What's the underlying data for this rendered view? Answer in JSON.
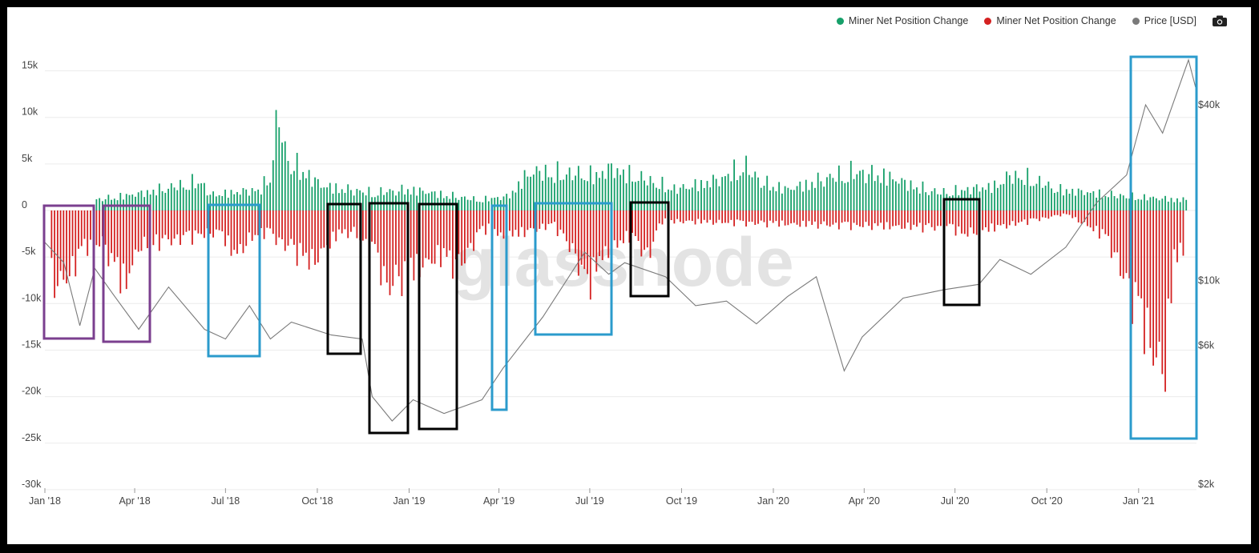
{
  "legend": {
    "green_label": "Miner Net Position Change",
    "red_label": "Miner Net Position Change",
    "price_label": "Price [USD]",
    "green_color": "#16a06a",
    "red_color": "#d42121",
    "price_color": "#7a7a7a"
  },
  "watermark": "glassnode",
  "chart_data": {
    "type": "bar",
    "x_range": [
      "2018-01-01",
      "2021-02-28"
    ],
    "x_ticks": [
      "Jan '18",
      "Apr '18",
      "Jul '18",
      "Oct '18",
      "Jan '19",
      "Apr '19",
      "Jul '19",
      "Oct '19",
      "Jan '20",
      "Apr '20",
      "Jul '20",
      "Oct '20",
      "Jan '21"
    ],
    "y_left_ticks": [
      "15k",
      "10k",
      "5k",
      "0",
      "-5k",
      "-10k",
      "-15k",
      "-20k",
      "-25k",
      "-30k"
    ],
    "y_left_range": [
      -30000,
      15000
    ],
    "y_right_ticks": [
      "$40k",
      "$10k",
      "$6k",
      "$2k"
    ],
    "y_right_scale": "log",
    "series": [
      {
        "name": "Miner Net Position Change",
        "color": "#16a06a",
        "unit": "BTC",
        "points": [
          [
            "2018-02-20",
            1500
          ],
          [
            "2018-04-10",
            2500
          ],
          [
            "2018-04-25",
            3000
          ],
          [
            "2018-05-15",
            3500
          ],
          [
            "2018-06-05",
            4200
          ],
          [
            "2018-06-15",
            2200
          ],
          [
            "2018-08-05",
            3000
          ],
          [
            "2018-08-15",
            5500
          ],
          [
            "2018-08-22",
            14000
          ],
          [
            "2018-08-30",
            7500
          ],
          [
            "2018-10-05",
            3500
          ],
          [
            "2018-11-25",
            2500
          ],
          [
            "2019-01-01",
            3000
          ],
          [
            "2019-03-10",
            1500
          ],
          [
            "2019-04-10",
            2000
          ],
          [
            "2019-05-01",
            5500
          ],
          [
            "2019-07-10",
            5000
          ],
          [
            "2019-07-20",
            6000
          ],
          [
            "2019-09-25",
            3000
          ],
          [
            "2019-11-10",
            4500
          ],
          [
            "2019-12-01",
            6500
          ],
          [
            "2019-12-20",
            4000
          ],
          [
            "2020-01-15",
            3000
          ],
          [
            "2020-02-20",
            4500
          ],
          [
            "2020-03-20",
            5500
          ],
          [
            "2020-04-20",
            5000
          ],
          [
            "2020-05-20",
            3500
          ],
          [
            "2020-06-15",
            2500
          ],
          [
            "2020-08-10",
            3500
          ],
          [
            "2020-08-25",
            5000
          ],
          [
            "2020-09-15",
            4500
          ],
          [
            "2020-10-10",
            3000
          ],
          [
            "2020-12-20",
            2000
          ],
          [
            "2021-02-18",
            1500
          ]
        ]
      },
      {
        "name": "Miner Net Position Change",
        "color": "#d42121",
        "unit": "BTC",
        "points": [
          [
            "2018-01-05",
            -8000
          ],
          [
            "2018-01-12",
            -11000
          ],
          [
            "2018-01-25",
            -9000
          ],
          [
            "2018-02-10",
            -5000
          ],
          [
            "2018-02-28",
            -4500
          ],
          [
            "2018-03-10",
            -8000
          ],
          [
            "2018-03-22",
            -10500
          ],
          [
            "2018-04-05",
            -5000
          ],
          [
            "2018-06-25",
            -3000
          ],
          [
            "2018-07-10",
            -6500
          ],
          [
            "2018-07-25",
            -4000
          ],
          [
            "2018-08-10",
            -3000
          ],
          [
            "2018-09-25",
            -7500
          ],
          [
            "2018-10-20",
            -3500
          ],
          [
            "2018-11-05",
            -3000
          ],
          [
            "2018-11-28",
            -6500
          ],
          [
            "2018-12-10",
            -11000
          ],
          [
            "2018-12-25",
            -9500
          ],
          [
            "2019-01-30",
            -6500
          ],
          [
            "2019-02-20",
            -8000
          ],
          [
            "2019-03-10",
            -3500
          ],
          [
            "2019-03-25",
            -2000
          ],
          [
            "2019-04-01",
            -4000
          ],
          [
            "2019-05-25",
            -2000
          ],
          [
            "2019-06-15",
            -6000
          ],
          [
            "2019-06-28",
            -11000
          ],
          [
            "2019-07-10",
            -7000
          ],
          [
            "2019-08-10",
            -3500
          ],
          [
            "2019-08-28",
            -6500
          ],
          [
            "2019-09-10",
            -1500
          ],
          [
            "2020-06-28",
            -2500
          ],
          [
            "2020-07-10",
            -3500
          ],
          [
            "2020-07-20",
            -3000
          ],
          [
            "2020-10-20",
            -500
          ],
          [
            "2020-11-20",
            -3000
          ],
          [
            "2020-11-30",
            -4000
          ],
          [
            "2021-01-05",
            -16000
          ],
          [
            "2021-01-15",
            -20000
          ],
          [
            "2021-01-25",
            -24000
          ],
          [
            "2021-02-05",
            -7500
          ],
          [
            "2021-02-15",
            -5000
          ]
        ]
      },
      {
        "name": "Price [USD]",
        "color": "#7a7a7a",
        "type": "line",
        "unit": "USD",
        "points": [
          [
            "2018-01-01",
            13500
          ],
          [
            "2018-01-20",
            11500
          ],
          [
            "2018-02-05",
            7000
          ],
          [
            "2018-02-20",
            11000
          ],
          [
            "2018-03-10",
            9000
          ],
          [
            "2018-04-05",
            6800
          ],
          [
            "2018-05-05",
            9500
          ],
          [
            "2018-06-10",
            6800
          ],
          [
            "2018-07-01",
            6300
          ],
          [
            "2018-07-25",
            8200
          ],
          [
            "2018-08-15",
            6300
          ],
          [
            "2018-09-05",
            7200
          ],
          [
            "2018-10-15",
            6500
          ],
          [
            "2018-11-15",
            6300
          ],
          [
            "2018-11-25",
            4000
          ],
          [
            "2018-12-15",
            3300
          ],
          [
            "2019-01-05",
            3900
          ],
          [
            "2019-02-05",
            3500
          ],
          [
            "2019-03-15",
            3900
          ],
          [
            "2019-04-05",
            5000
          ],
          [
            "2019-05-15",
            7500
          ],
          [
            "2019-06-26",
            12500
          ],
          [
            "2019-07-20",
            10500
          ],
          [
            "2019-08-05",
            11500
          ],
          [
            "2019-09-15",
            10300
          ],
          [
            "2019-10-15",
            8200
          ],
          [
            "2019-11-15",
            8500
          ],
          [
            "2019-12-15",
            7100
          ],
          [
            "2020-01-15",
            8800
          ],
          [
            "2020-02-13",
            10300
          ],
          [
            "2020-03-12",
            4900
          ],
          [
            "2020-03-30",
            6400
          ],
          [
            "2020-05-10",
            8700
          ],
          [
            "2020-06-20",
            9300
          ],
          [
            "2020-07-25",
            9700
          ],
          [
            "2020-08-15",
            11800
          ],
          [
            "2020-09-15",
            10500
          ],
          [
            "2020-10-20",
            13000
          ],
          [
            "2020-11-20",
            18500
          ],
          [
            "2020-12-20",
            23000
          ],
          [
            "2021-01-08",
            40000
          ],
          [
            "2021-01-25",
            32000
          ],
          [
            "2021-02-20",
            57000
          ],
          [
            "2021-02-27",
            46000
          ]
        ]
      }
    ]
  }
}
